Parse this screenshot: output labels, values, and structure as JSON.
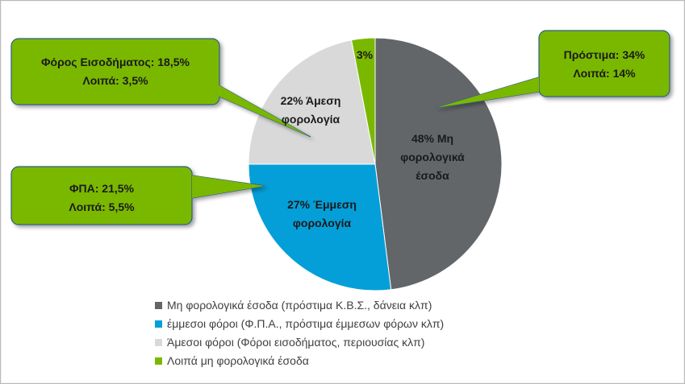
{
  "chart_data": {
    "type": "pie",
    "slices": [
      {
        "label": "Μη φορολογικά έσοδα (πρόστιμα Κ.Β.Σ., δάνεια κλπ)",
        "value": 48,
        "color": "#636669",
        "data_label": [
          "48% Μη",
          "φορολογικά",
          "έσοδα"
        ]
      },
      {
        "label": "έμμεσοι φόροι (Φ.Π.Α., πρόστιμα έμμεσων φόρων κλπ)",
        "value": 27,
        "color": "#049fd8",
        "data_label": [
          "27% Έμμεση",
          "φορολογία"
        ]
      },
      {
        "label": "Άμεσοι φόροι (Φόροι εισοδήματος, περιουσίας κλπ)",
        "value": 22,
        "color": "#d9d9d9",
        "data_label": [
          "22% Άμεση",
          "φορολογία"
        ]
      },
      {
        "label": "Λοιπά μη φορολογικά έσοδα",
        "value": 3,
        "color": "#7ab800",
        "data_label": [
          "3%"
        ]
      }
    ],
    "legend_position": "bottom",
    "callouts": [
      {
        "lines": [
          "Πρόστιμα: 34%",
          "Λοιπά: 14%"
        ]
      },
      {
        "lines": [
          "Φόρος Εισοδήματος:  18,5%",
          "Λοιπά:  3,5%"
        ]
      },
      {
        "lines": [
          "ΦΠΑ: 21,5%",
          "Λοιπά: 5,5%"
        ]
      }
    ]
  },
  "colors": {
    "callout_fill": "#7ab800",
    "callout_border": "#2e5d8a",
    "text": "#1a1a1a",
    "legend_text": "#404040"
  }
}
